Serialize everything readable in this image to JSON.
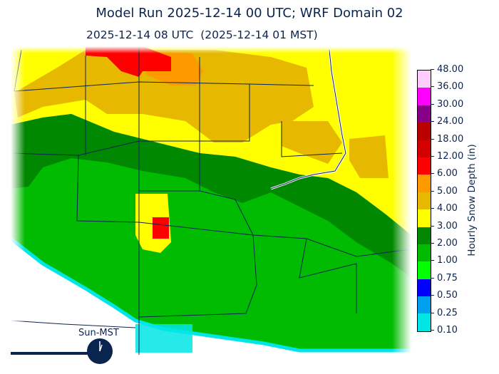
{
  "title": "Model Run 2025-12-14 00 UTC; WRF Domain 02",
  "subtitle": "2025-12-14 08 UTC  (2025-12-14 01 MST)",
  "colorbar": {
    "label": "Hourly Snow Depth (in)",
    "ticks": [
      "48.00",
      "36.00",
      "30.00",
      "24.00",
      "18.00",
      "12.00",
      "6.00",
      "5.00",
      "4.00",
      "3.00",
      "2.00",
      "1.00",
      "0.75",
      "0.50",
      "0.25",
      "0.10"
    ],
    "colors": [
      "#ffccff",
      "#ff00ff",
      "#880088",
      "#bb0000",
      "#d40000",
      "#ff0000",
      "#ff9900",
      "#e6b800",
      "#ffff00",
      "#008800",
      "#00bb00",
      "#00ff00",
      "#0000ff",
      "#00a0f0",
      "#00e6e6"
    ]
  },
  "clock": {
    "label": "Sun-MST",
    "icon": "clock-icon"
  }
}
